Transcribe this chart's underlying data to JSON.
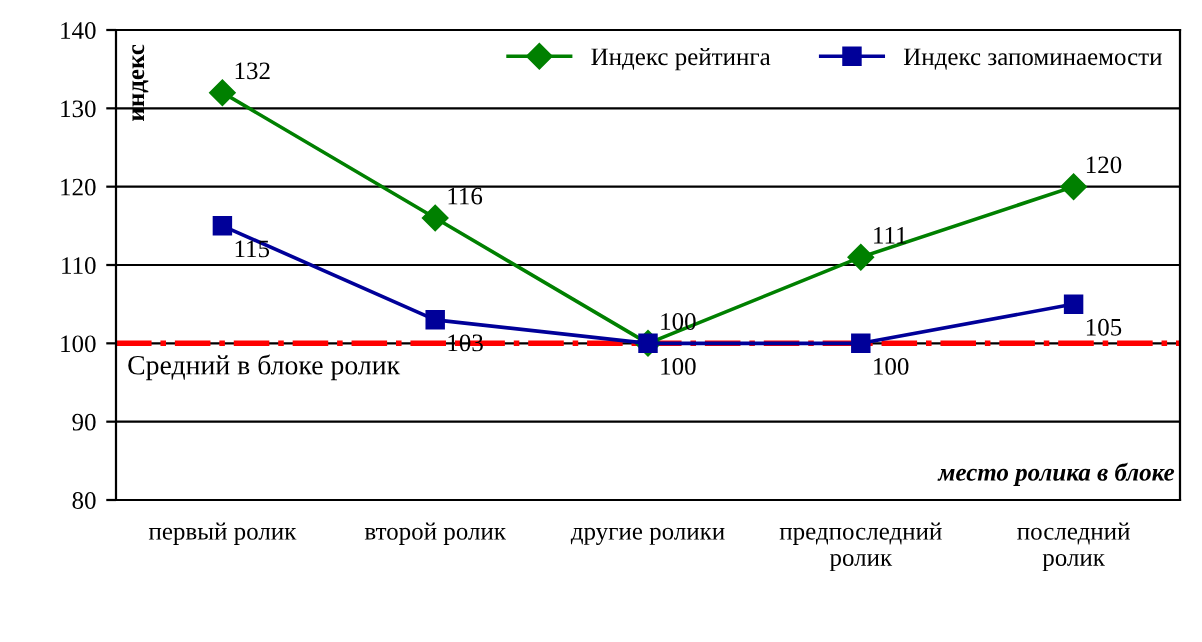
{
  "chart_data": {
    "type": "line",
    "ylabel": "индекс",
    "xlabel": "место ролика в блоке",
    "categories": [
      "первый ролик",
      "второй ролик",
      "другие ролики",
      "предпоследний\nролик",
      "последний\nролик"
    ],
    "series": [
      {
        "name": "Индекс рейтинга",
        "color": "#008000",
        "marker": "diamond",
        "values": [
          132,
          116,
          100,
          111,
          120
        ]
      },
      {
        "name": "Индекс запоминаемости",
        "color": "#000099",
        "marker": "square",
        "values": [
          115,
          103,
          100,
          100,
          105
        ]
      }
    ],
    "ylim": [
      80,
      140
    ],
    "yticks": [
      80,
      90,
      100,
      110,
      120,
      130,
      140
    ],
    "grid": "y",
    "legend": "top right",
    "data_labels": true,
    "ref_lines": [
      {
        "axis": "y",
        "value": 100,
        "label": "Средний в блоке ролик",
        "color": "#ff0000",
        "line_style": "dashdot"
      }
    ]
  }
}
